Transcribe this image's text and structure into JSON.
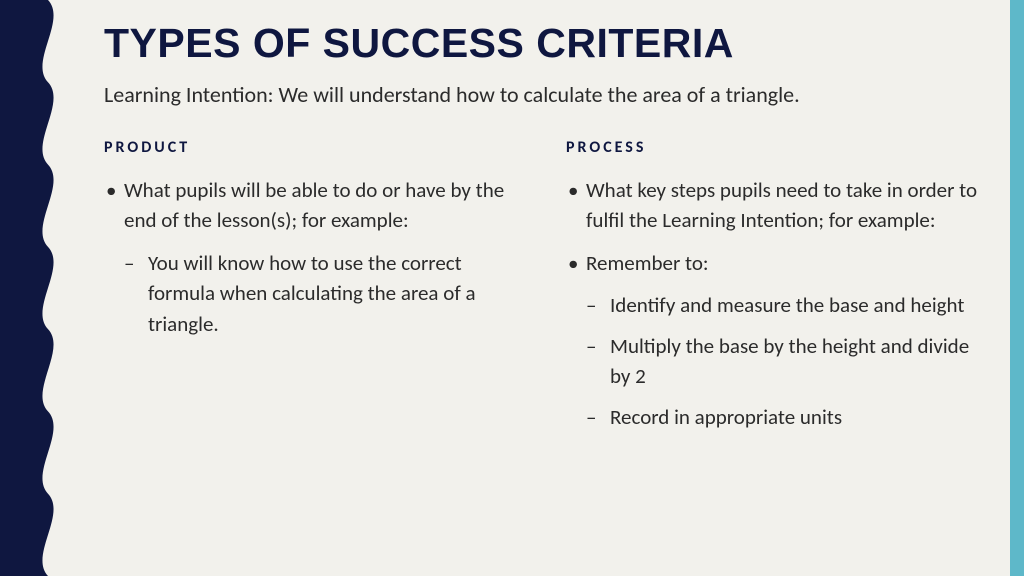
{
  "colors": {
    "background": "#f2f1ec",
    "title": "#0f1740",
    "body_text": "#2b2b2b",
    "heading": "#0f1740",
    "left_wave": "#0f1740",
    "right_stripe": "#5eb8c9"
  },
  "title": "TYPES OF SUCCESS CRITERIA",
  "subtitle": "Learning Intention: We will understand how to calculate the area of a triangle.",
  "left_column": {
    "heading": "PRODUCT",
    "items": [
      {
        "type": "bullet",
        "text": "What pupils will be able to do or have by the end of the lesson(s); for example:"
      },
      {
        "type": "dash",
        "text": "You will know how to use the correct formula when calculating the area of a triangle."
      }
    ]
  },
  "right_column": {
    "heading": "PROCESS",
    "items": [
      {
        "type": "bullet",
        "text": "What key steps pupils need to take in order to fulfil the Learning Intention; for example:"
      },
      {
        "type": "bullet",
        "text": "Remember to:"
      },
      {
        "type": "dash",
        "text": "Identify and measure the base and height"
      },
      {
        "type": "dash",
        "text": "Multiply the base by the height and divide by 2"
      },
      {
        "type": "dash",
        "text": "Record in appropriate units"
      }
    ]
  }
}
